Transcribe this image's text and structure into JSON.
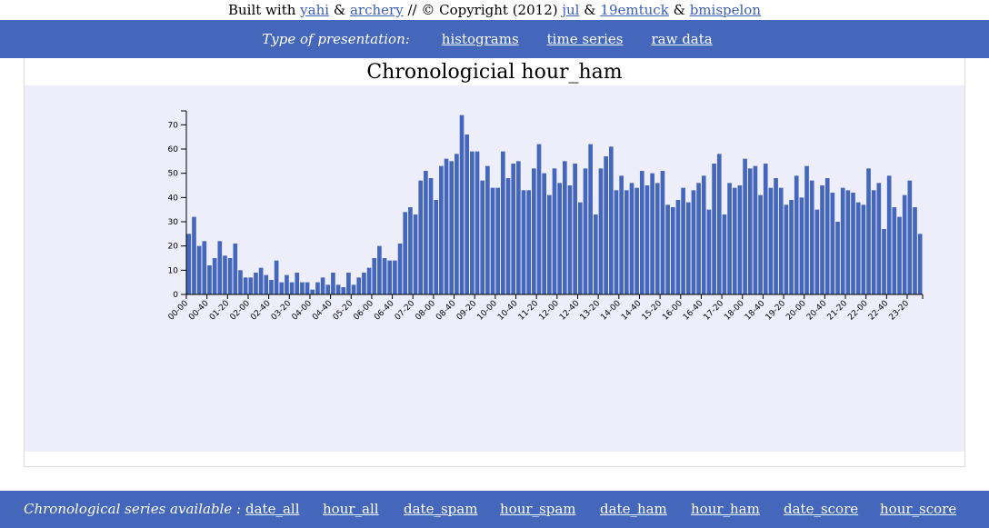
{
  "credits": {
    "built_with": "Built with",
    "yahi": "yahi",
    "amp1": "&",
    "archery": "archery",
    "copyright": "// © Copyright (2012)",
    "jul": "jul",
    "amp2": "&",
    "nineteenemtuck": "19emtuck",
    "amp3": "&",
    "bmispelon": "bmispelon"
  },
  "nav": {
    "label": "Type of presentation:",
    "links": [
      "histograms",
      "time series",
      "raw data"
    ]
  },
  "footer": {
    "label": "Chronological series available :",
    "links": [
      "date_all",
      "hour_all",
      "date_spam",
      "hour_spam",
      "date_ham",
      "hour_ham",
      "date_score",
      "hour_score"
    ]
  },
  "colors": {
    "bar": "#4466bb",
    "nav_bg": "#4466bb",
    "plot_bg": "#eeeefb",
    "link": "#3b5fb7"
  },
  "chart_data": {
    "type": "bar",
    "title": "Chronologicial hour_ham",
    "xlabel": "",
    "ylabel": "",
    "ylim": [
      0,
      75
    ],
    "yticks": [
      0,
      10,
      20,
      30,
      40,
      50,
      60,
      70
    ],
    "grid": false,
    "tick_labels": [
      "00-00",
      "00-40",
      "01-20",
      "02-00",
      "02-40",
      "03-20",
      "04-00",
      "04-40",
      "05-20",
      "06-00",
      "06-40",
      "07-20",
      "08-00",
      "08-40",
      "09-20",
      "10-00",
      "10-40",
      "11-20",
      "12-00",
      "12-40",
      "13-20",
      "14-00",
      "14-40",
      "15-20",
      "16-00",
      "16-40",
      "17-20",
      "18-00",
      "18-40",
      "19-20",
      "20-00",
      "20-40",
      "21-20",
      "22-00",
      "22-40",
      "23-20"
    ],
    "values": [
      25,
      32,
      20,
      22,
      12,
      15,
      22,
      16,
      15,
      21,
      10,
      7,
      7,
      9,
      11,
      8,
      6,
      14,
      5,
      8,
      5,
      9,
      5,
      5,
      2,
      5,
      7,
      4,
      9,
      4,
      3,
      9,
      4,
      7,
      9,
      11,
      15,
      20,
      15,
      14,
      14,
      21,
      34,
      36,
      33,
      47,
      51,
      48,
      39,
      53,
      56,
      55,
      58,
      74,
      66,
      59,
      59,
      47,
      53,
      44,
      44,
      59,
      48,
      54,
      55,
      43,
      43,
      52,
      62,
      50,
      41,
      52,
      46,
      55,
      45,
      54,
      38,
      52,
      62,
      33,
      52,
      57,
      61,
      43,
      49,
      43,
      46,
      44,
      51,
      45,
      50,
      46,
      51,
      37,
      36,
      39,
      44,
      38,
      43,
      46,
      49,
      35,
      54,
      58,
      33,
      46,
      44,
      45,
      56,
      52,
      53,
      41,
      54,
      44,
      48,
      44,
      37,
      39,
      49,
      40,
      53,
      47,
      35,
      45,
      48,
      42,
      30,
      44,
      43,
      42,
      38,
      37,
      52,
      43,
      46,
      27,
      49,
      36,
      32,
      41,
      47,
      36,
      25
    ]
  }
}
